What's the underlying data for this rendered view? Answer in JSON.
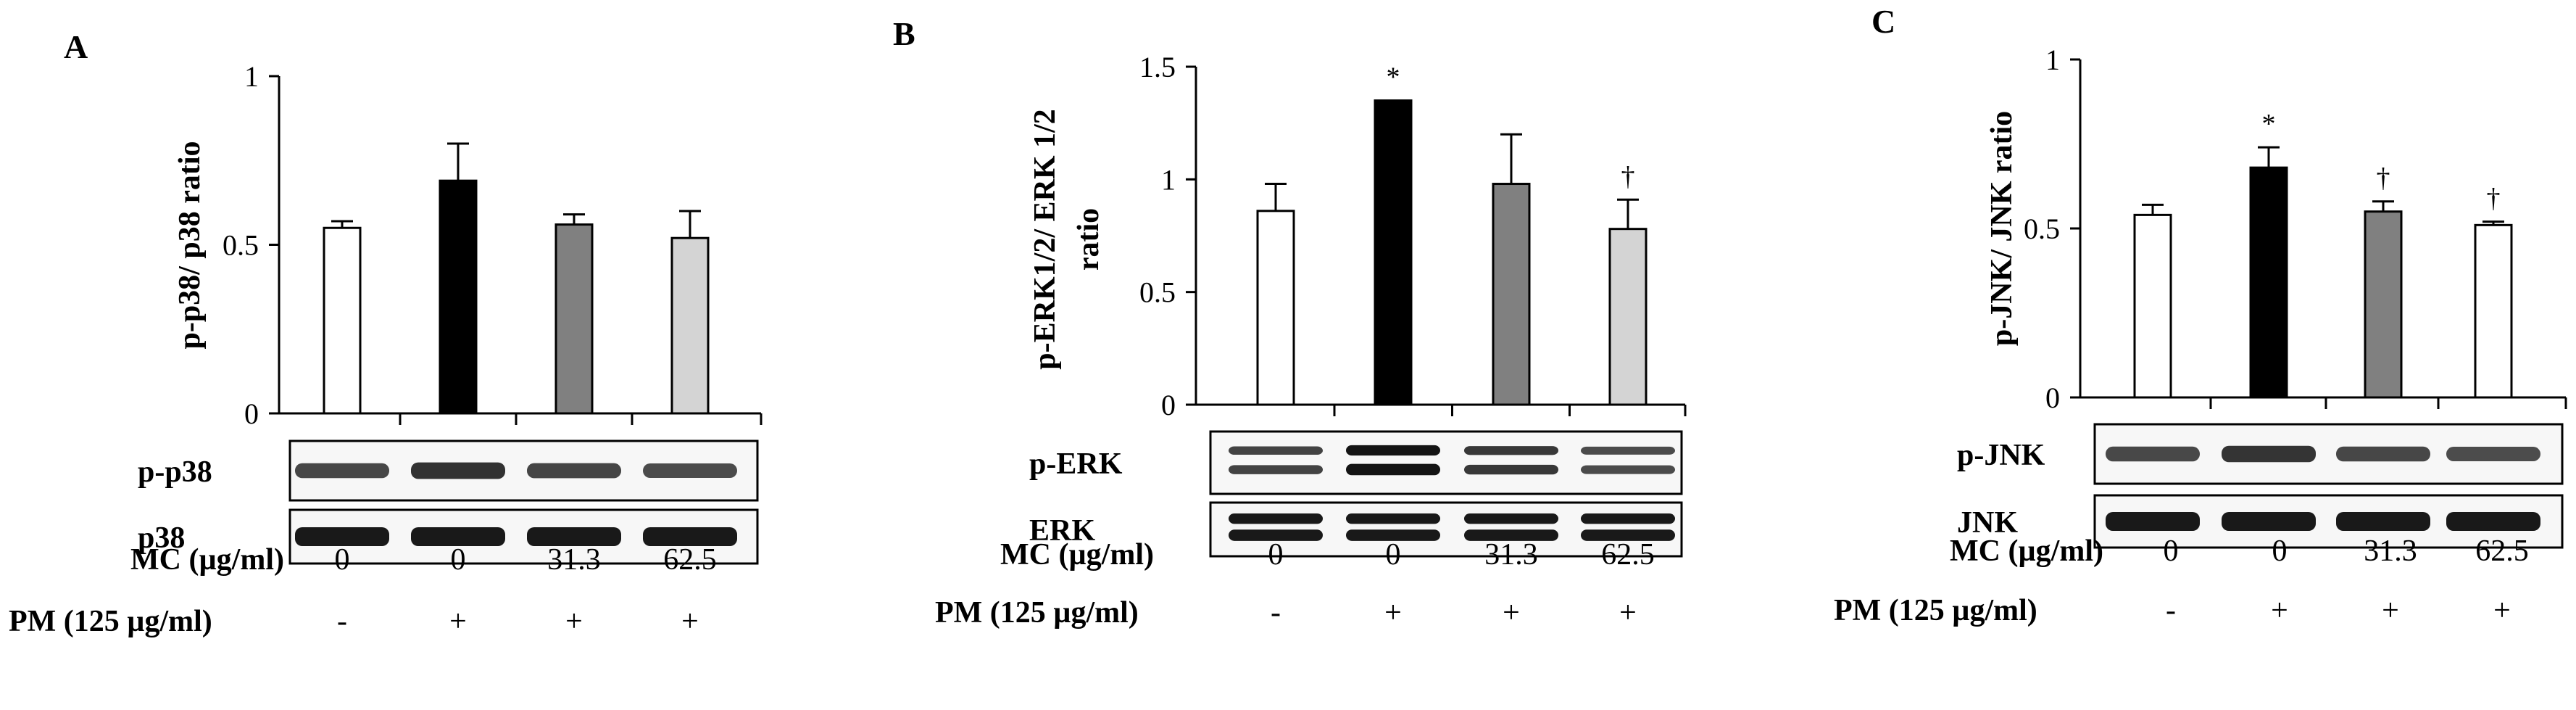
{
  "colors": {
    "bar_control": "#ffffff",
    "bar_pm": "#000000",
    "bar_mc_low": "#808080",
    "bar_mc_high": "#d4d4d4",
    "outline": "#000000"
  },
  "conditions": {
    "mc_label": "MC (µg/ml)",
    "pm_label": "PM (125 µg/ml)",
    "mc_values": [
      "0",
      "0",
      "31.3",
      "62.5"
    ],
    "pm_values": [
      "-",
      "+",
      "+",
      "+"
    ]
  },
  "chart_data": [
    {
      "type": "bar",
      "panel_label": "A",
      "ylabel": "p-p38/ p38 ratio",
      "ylim": [
        0,
        1
      ],
      "yticks": [
        "0",
        "0.5",
        "1"
      ],
      "categories": [
        "0 / -",
        "0 / +",
        "31.3 / +",
        "62.5 / +"
      ],
      "values": [
        0.55,
        0.69,
        0.56,
        0.52
      ],
      "errors": [
        0.02,
        0.11,
        0.03,
        0.08
      ],
      "annotations": [
        "",
        "",
        "",
        ""
      ],
      "bar_colors": [
        "#ffffff",
        "#000000",
        "#808080",
        "#d4d4d4"
      ],
      "blots": [
        "p-p38",
        "p38"
      ]
    },
    {
      "type": "bar",
      "panel_label": "B",
      "ylabel": "p-ERK1/2/ ERK 1/2 ratio",
      "ylim": [
        0,
        1.5
      ],
      "yticks": [
        "0",
        "0.5",
        "1",
        "1.5"
      ],
      "categories": [
        "0 / -",
        "0 / +",
        "31.3 / +",
        "62.5 / +"
      ],
      "values": [
        0.86,
        1.35,
        0.98,
        0.78
      ],
      "errors": [
        0.12,
        0.0,
        0.22,
        0.13
      ],
      "annotations": [
        "",
        "*",
        "",
        "†"
      ],
      "bar_colors": [
        "#ffffff",
        "#000000",
        "#808080",
        "#d4d4d4"
      ],
      "blots": [
        "p-ERK",
        "ERK"
      ]
    },
    {
      "type": "bar",
      "panel_label": "C",
      "ylabel": "p-JNK/ JNK ratio",
      "ylim": [
        0,
        1
      ],
      "yticks": [
        "0",
        "0.5",
        "1"
      ],
      "categories": [
        "0 / -",
        "0 / +",
        "31.3 / +",
        "62.5 / +"
      ],
      "values": [
        0.54,
        0.68,
        0.55,
        0.51
      ],
      "errors": [
        0.03,
        0.06,
        0.03,
        0.01
      ],
      "annotations": [
        "",
        "*",
        "†",
        "†"
      ],
      "bar_colors": [
        "#ffffff",
        "#000000",
        "#808080",
        "#ffffff"
      ],
      "blots": [
        "p-JNK",
        "JNK"
      ]
    }
  ]
}
